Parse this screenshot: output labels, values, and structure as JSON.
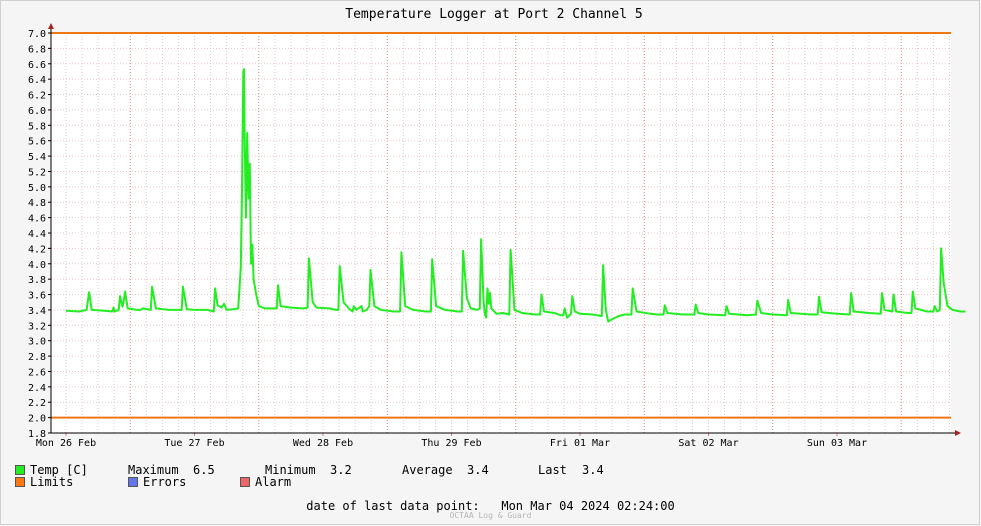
{
  "chart_data": {
    "type": "line",
    "title": "Temperature Logger at Port 2 Channel 5",
    "ylim": [
      1.8,
      7.0
    ],
    "y_ticks": [
      "1.8",
      "2.0",
      "2.2",
      "2.4",
      "2.6",
      "2.8",
      "3.0",
      "3.2",
      "3.4",
      "3.6",
      "3.8",
      "4.0",
      "4.2",
      "4.4",
      "4.6",
      "4.8",
      "5.0",
      "5.2",
      "5.4",
      "5.6",
      "5.8",
      "6.0",
      "6.2",
      "6.4",
      "6.6",
      "6.8",
      "7.0"
    ],
    "x_tick_labels": [
      "Mon 26 Feb",
      "Tue 27 Feb",
      "Wed 28 Feb",
      "Thu 29 Feb",
      "Fri 01 Mar",
      "Sat 02 Mar",
      "Sun 03 Mar"
    ],
    "x_range_days": [
      0,
      7.1
    ],
    "limits": [
      7.0,
      2.0
    ],
    "grid": true,
    "series": [
      {
        "name": "Temp [C]",
        "color": "#22ee22",
        "points": [
          [
            0.0,
            3.39
          ],
          [
            0.1,
            3.38
          ],
          [
            0.16,
            3.4
          ],
          [
            0.18,
            3.63
          ],
          [
            0.2,
            3.4
          ],
          [
            0.3,
            3.39
          ],
          [
            0.36,
            3.38
          ],
          [
            0.37,
            3.43
          ],
          [
            0.38,
            3.38
          ],
          [
            0.41,
            3.4
          ],
          [
            0.42,
            3.58
          ],
          [
            0.44,
            3.44
          ],
          [
            0.45,
            3.52
          ],
          [
            0.46,
            3.64
          ],
          [
            0.48,
            3.42
          ],
          [
            0.55,
            3.4
          ],
          [
            0.58,
            3.4
          ],
          [
            0.6,
            3.42
          ],
          [
            0.66,
            3.4
          ],
          [
            0.67,
            3.7
          ],
          [
            0.7,
            3.42
          ],
          [
            0.8,
            3.4
          ],
          [
            0.9,
            3.4
          ],
          [
            0.91,
            3.7
          ],
          [
            0.94,
            3.41
          ],
          [
            1.0,
            3.4
          ],
          [
            1.1,
            3.4
          ],
          [
            1.15,
            3.38
          ],
          [
            1.16,
            3.68
          ],
          [
            1.18,
            3.46
          ],
          [
            1.21,
            3.43
          ],
          [
            1.23,
            3.48
          ],
          [
            1.25,
            3.4
          ],
          [
            1.3,
            3.41
          ],
          [
            1.34,
            3.42
          ],
          [
            1.36,
            3.95
          ],
          [
            1.37,
            4.95
          ],
          [
            1.38,
            6.5
          ],
          [
            1.385,
            6.53
          ],
          [
            1.39,
            5.7
          ],
          [
            1.4,
            4.6
          ],
          [
            1.41,
            5.7
          ],
          [
            1.42,
            4.85
          ],
          [
            1.43,
            5.3
          ],
          [
            1.44,
            4.0
          ],
          [
            1.45,
            4.25
          ],
          [
            1.46,
            3.8
          ],
          [
            1.48,
            3.6
          ],
          [
            1.5,
            3.45
          ],
          [
            1.55,
            3.42
          ],
          [
            1.6,
            3.42
          ],
          [
            1.64,
            3.42
          ],
          [
            1.65,
            3.72
          ],
          [
            1.67,
            3.45
          ],
          [
            1.75,
            3.43
          ],
          [
            1.85,
            3.42
          ],
          [
            1.88,
            3.43
          ],
          [
            1.89,
            4.07
          ],
          [
            1.92,
            3.5
          ],
          [
            1.95,
            3.43
          ],
          [
            2.05,
            3.42
          ],
          [
            2.1,
            3.4
          ],
          [
            2.12,
            3.4
          ],
          [
            2.13,
            3.97
          ],
          [
            2.16,
            3.5
          ],
          [
            2.2,
            3.42
          ],
          [
            2.23,
            3.38
          ],
          [
            2.24,
            3.45
          ],
          [
            2.26,
            3.4
          ],
          [
            2.3,
            3.45
          ],
          [
            2.31,
            3.38
          ],
          [
            2.34,
            3.4
          ],
          [
            2.36,
            3.45
          ],
          [
            2.37,
            3.92
          ],
          [
            2.4,
            3.45
          ],
          [
            2.45,
            3.4
          ],
          [
            2.55,
            3.38
          ],
          [
            2.6,
            3.38
          ],
          [
            2.61,
            4.15
          ],
          [
            2.64,
            3.45
          ],
          [
            2.7,
            3.4
          ],
          [
            2.8,
            3.38
          ],
          [
            2.84,
            3.38
          ],
          [
            2.85,
            4.06
          ],
          [
            2.88,
            3.45
          ],
          [
            2.95,
            3.4
          ],
          [
            3.05,
            3.38
          ],
          [
            3.08,
            3.38
          ],
          [
            3.09,
            4.17
          ],
          [
            3.12,
            3.55
          ],
          [
            3.15,
            3.42
          ],
          [
            3.2,
            3.4
          ],
          [
            3.22,
            3.42
          ],
          [
            3.23,
            4.32
          ],
          [
            3.25,
            3.5
          ],
          [
            3.26,
            3.35
          ],
          [
            3.27,
            3.3
          ],
          [
            3.28,
            3.68
          ],
          [
            3.29,
            3.48
          ],
          [
            3.3,
            3.62
          ],
          [
            3.31,
            3.42
          ],
          [
            3.35,
            3.35
          ],
          [
            3.4,
            3.36
          ],
          [
            3.45,
            3.34
          ],
          [
            3.46,
            4.18
          ],
          [
            3.49,
            3.4
          ],
          [
            3.55,
            3.36
          ],
          [
            3.65,
            3.34
          ],
          [
            3.69,
            3.34
          ],
          [
            3.7,
            3.6
          ],
          [
            3.72,
            3.38
          ],
          [
            3.8,
            3.36
          ],
          [
            3.85,
            3.33
          ],
          [
            3.87,
            3.33
          ],
          [
            3.88,
            3.42
          ],
          [
            3.9,
            3.3
          ],
          [
            3.93,
            3.35
          ],
          [
            3.94,
            3.58
          ],
          [
            3.96,
            3.38
          ],
          [
            4.0,
            3.35
          ],
          [
            4.1,
            3.34
          ],
          [
            4.17,
            3.32
          ],
          [
            4.18,
            3.98
          ],
          [
            4.2,
            3.42
          ],
          [
            4.21,
            3.32
          ],
          [
            4.22,
            3.25
          ],
          [
            4.25,
            3.28
          ],
          [
            4.3,
            3.32
          ],
          [
            4.35,
            3.34
          ],
          [
            4.4,
            3.34
          ],
          [
            4.41,
            3.68
          ],
          [
            4.44,
            3.38
          ],
          [
            4.55,
            3.35
          ],
          [
            4.6,
            3.34
          ],
          [
            4.65,
            3.34
          ],
          [
            4.66,
            3.46
          ],
          [
            4.68,
            3.36
          ],
          [
            4.8,
            3.34
          ],
          [
            4.89,
            3.34
          ],
          [
            4.9,
            3.47
          ],
          [
            4.92,
            3.36
          ],
          [
            5.0,
            3.34
          ],
          [
            5.13,
            3.33
          ],
          [
            5.14,
            3.45
          ],
          [
            5.16,
            3.35
          ],
          [
            5.3,
            3.33
          ],
          [
            5.37,
            3.34
          ],
          [
            5.38,
            3.52
          ],
          [
            5.41,
            3.36
          ],
          [
            5.5,
            3.34
          ],
          [
            5.61,
            3.33
          ],
          [
            5.62,
            3.53
          ],
          [
            5.64,
            3.36
          ],
          [
            5.8,
            3.34
          ],
          [
            5.85,
            3.34
          ],
          [
            5.86,
            3.57
          ],
          [
            5.88,
            3.37
          ],
          [
            6.0,
            3.35
          ],
          [
            6.1,
            3.34
          ],
          [
            6.11,
            3.62
          ],
          [
            6.13,
            3.38
          ],
          [
            6.25,
            3.36
          ],
          [
            6.34,
            3.35
          ],
          [
            6.35,
            3.62
          ],
          [
            6.37,
            3.4
          ],
          [
            6.43,
            3.38
          ],
          [
            6.44,
            3.6
          ],
          [
            6.46,
            3.38
          ],
          [
            6.55,
            3.36
          ],
          [
            6.58,
            3.36
          ],
          [
            6.59,
            3.64
          ],
          [
            6.61,
            3.42
          ],
          [
            6.7,
            3.38
          ],
          [
            6.75,
            3.38
          ],
          [
            6.76,
            3.45
          ],
          [
            6.78,
            3.38
          ],
          [
            6.8,
            3.4
          ],
          [
            6.81,
            4.2
          ],
          [
            6.83,
            3.75
          ],
          [
            6.86,
            3.45
          ],
          [
            6.9,
            3.4
          ],
          [
            6.96,
            3.38
          ],
          [
            7.0,
            3.38
          ]
        ]
      }
    ]
  },
  "legend": {
    "temp": {
      "label": "Temp [C]",
      "color": "#22ee22"
    },
    "limits": {
      "label": "Limits",
      "color": "#ff7711"
    },
    "errors": {
      "label": "Errors",
      "color": "#6677ee"
    },
    "alarm": {
      "label": "Alarm",
      "color": "#ee6666"
    }
  },
  "stats": {
    "maximum_label": "Maximum",
    "maximum": "6.5",
    "minimum_label": "Minimum",
    "minimum": "3.2",
    "average_label": "Average",
    "average": "3.4",
    "last_label": "Last",
    "last": "3.4"
  },
  "footer": {
    "label": "date of last data point:",
    "value": "Mon Mar 04 2024 02:24:00",
    "watermark": "OCTAA Log & Guard"
  },
  "colors": {
    "limit_line": "#ee7711",
    "series_line": "#22ee22",
    "grid_minor": "#e8c8c8",
    "grid_major": "#e08080",
    "axis": "#000000",
    "arrow": "#aa2222"
  }
}
